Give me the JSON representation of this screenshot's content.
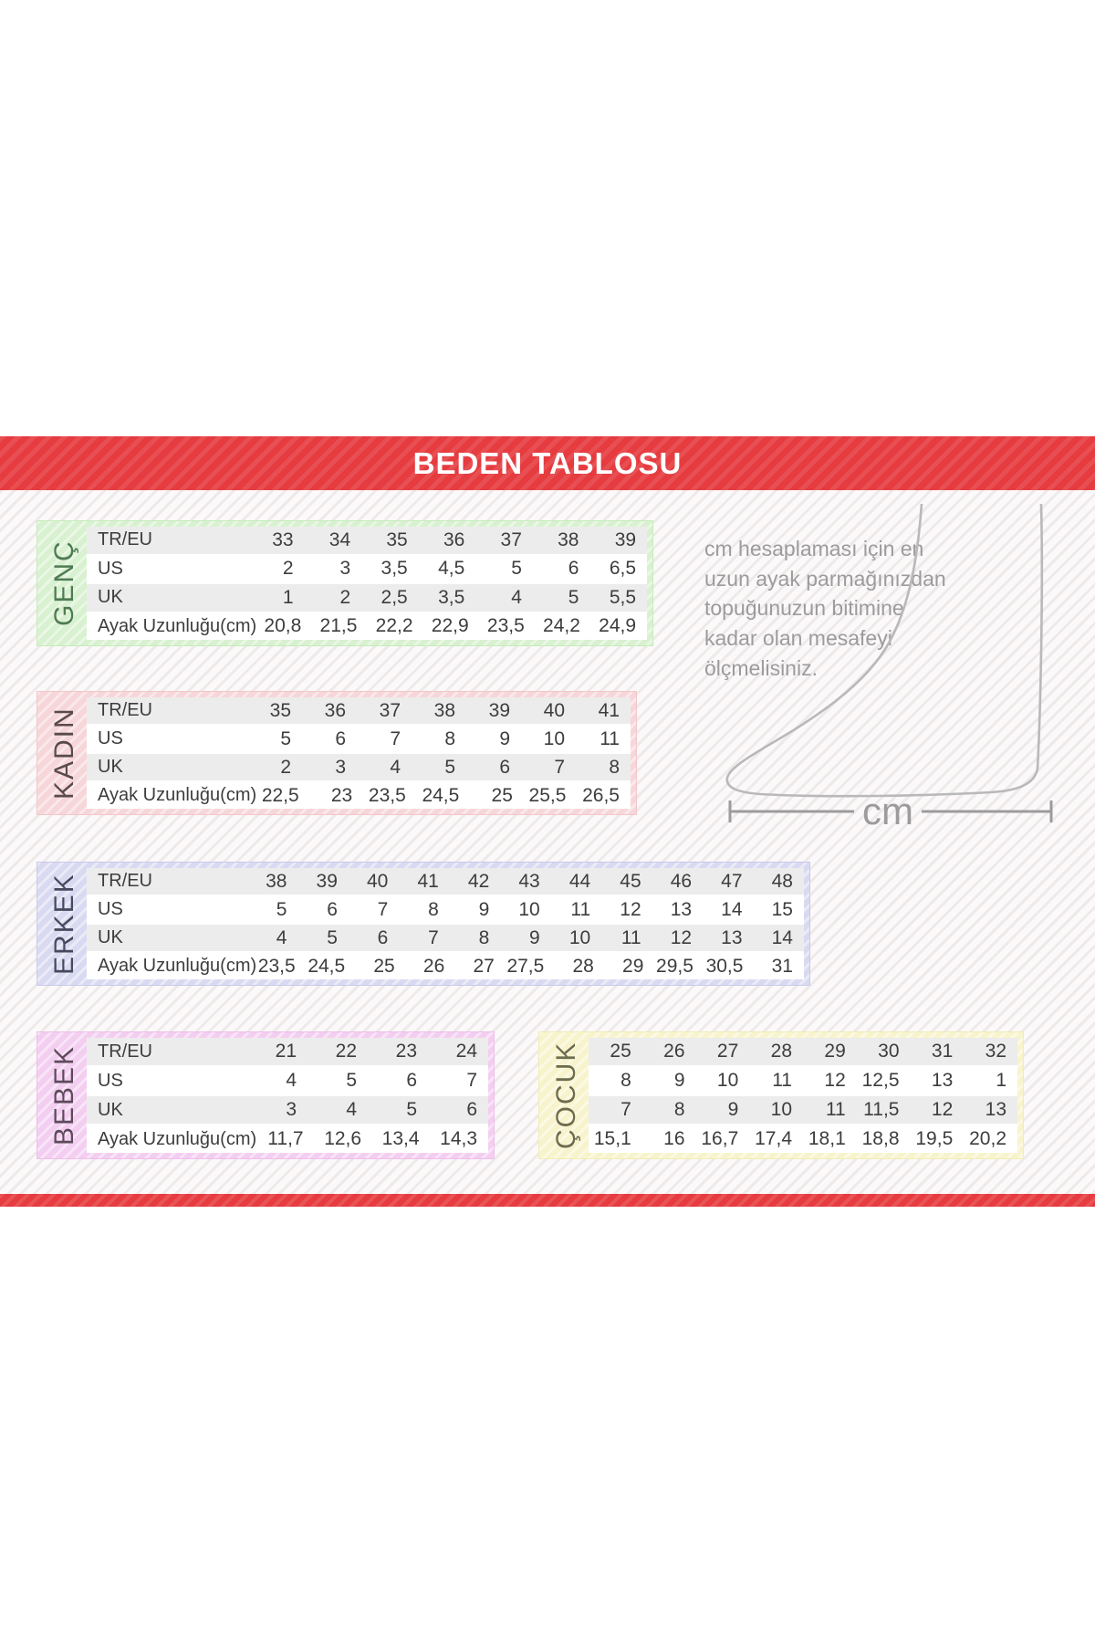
{
  "banner": {
    "title": "BEDEN TABLOSU",
    "color": "#e63b3f"
  },
  "note": {
    "text": "cm hesaplaması için en uzun ayak parmağınızdan topuğunuzun bitimine kadar olan mesafeyi ölçmelisiniz."
  },
  "ruler": {
    "label": "cm"
  },
  "chart_data": [
    {
      "type": "table",
      "name": "GENÇ",
      "theme": {
        "bg": "#d8f1d0",
        "border": "#c6ecbb",
        "label_color": "#4e7b52"
      },
      "rows": [
        {
          "label": "TR/EU",
          "values": [
            "33",
            "34",
            "35",
            "36",
            "37",
            "38",
            "39"
          ]
        },
        {
          "label": "US",
          "values": [
            "2",
            "3",
            "3,5",
            "4,5",
            "5",
            "6",
            "6,5"
          ]
        },
        {
          "label": "UK",
          "values": [
            "1",
            "2",
            "2,5",
            "3,5",
            "4",
            "5",
            "5,5"
          ]
        },
        {
          "label": "Ayak Uzunluğu(cm)",
          "values": [
            "20,8",
            "21,5",
            "22,2",
            "22,9",
            "23,5",
            "24,2",
            "24,9"
          ]
        }
      ]
    },
    {
      "type": "table",
      "name": "KADIN",
      "theme": {
        "bg": "#f6d6d9",
        "border": "#f2c6ca",
        "label_color": "#5a4a4c"
      },
      "rows": [
        {
          "label": "TR/EU",
          "values": [
            "35",
            "36",
            "37",
            "38",
            "39",
            "40",
            "41"
          ]
        },
        {
          "label": "US",
          "values": [
            "5",
            "6",
            "7",
            "8",
            "9",
            "10",
            "11"
          ]
        },
        {
          "label": "UK",
          "values": [
            "2",
            "3",
            "4",
            "5",
            "6",
            "7",
            "8"
          ]
        },
        {
          "label": "Ayak Uzunluğu(cm)",
          "values": [
            "22,5",
            "23",
            "23,5",
            "24,5",
            "25",
            "25,5",
            "26,5"
          ]
        }
      ]
    },
    {
      "type": "table",
      "name": "ERKEK",
      "theme": {
        "bg": "#d9daf1",
        "border": "#c8caec",
        "label_color": "#474a5e"
      },
      "rows": [
        {
          "label": "TR/EU",
          "values": [
            "38",
            "39",
            "40",
            "41",
            "42",
            "43",
            "44",
            "45",
            "46",
            "47",
            "48"
          ]
        },
        {
          "label": "US",
          "values": [
            "5",
            "6",
            "7",
            "8",
            "9",
            "10",
            "11",
            "12",
            "13",
            "14",
            "15"
          ]
        },
        {
          "label": "UK",
          "values": [
            "4",
            "5",
            "6",
            "7",
            "8",
            "9",
            "10",
            "11",
            "12",
            "13",
            "14"
          ]
        },
        {
          "label": "Ayak Uzunluğu(cm)",
          "values": [
            "23,5",
            "24,5",
            "25",
            "26",
            "27",
            "27,5",
            "28",
            "29",
            "29,5",
            "30,5",
            "31"
          ]
        }
      ]
    },
    {
      "type": "table",
      "name": "BEBEK",
      "theme": {
        "bg": "#f3cef1",
        "border": "#eebdea",
        "label_color": "#5e4a5c"
      },
      "rows": [
        {
          "label": "TR/EU",
          "values": [
            "21",
            "22",
            "23",
            "24"
          ]
        },
        {
          "label": "US",
          "values": [
            "4",
            "5",
            "6",
            "7"
          ]
        },
        {
          "label": "UK",
          "values": [
            "3",
            "4",
            "5",
            "6"
          ]
        },
        {
          "label": "Ayak Uzunluğu(cm)",
          "values": [
            "11,7",
            "12,6",
            "13,4",
            "14,3"
          ]
        }
      ]
    },
    {
      "type": "table",
      "name": "ÇOCUK",
      "theme": {
        "bg": "#f7f4cd",
        "border": "#f0ecb6",
        "label_color": "#6c6c4e"
      },
      "rows": [
        {
          "values": [
            "25",
            "26",
            "27",
            "28",
            "29",
            "30",
            "31",
            "32"
          ]
        },
        {
          "values": [
            "8",
            "9",
            "10",
            "11",
            "12",
            "12,5",
            "13",
            "1"
          ]
        },
        {
          "values": [
            "7",
            "8",
            "9",
            "10",
            "11",
            "11,5",
            "12",
            "13"
          ]
        },
        {
          "values": [
            "15,1",
            "16",
            "16,7",
            "17,4",
            "18,1",
            "18,8",
            "19,5",
            "20,2"
          ]
        }
      ]
    }
  ]
}
